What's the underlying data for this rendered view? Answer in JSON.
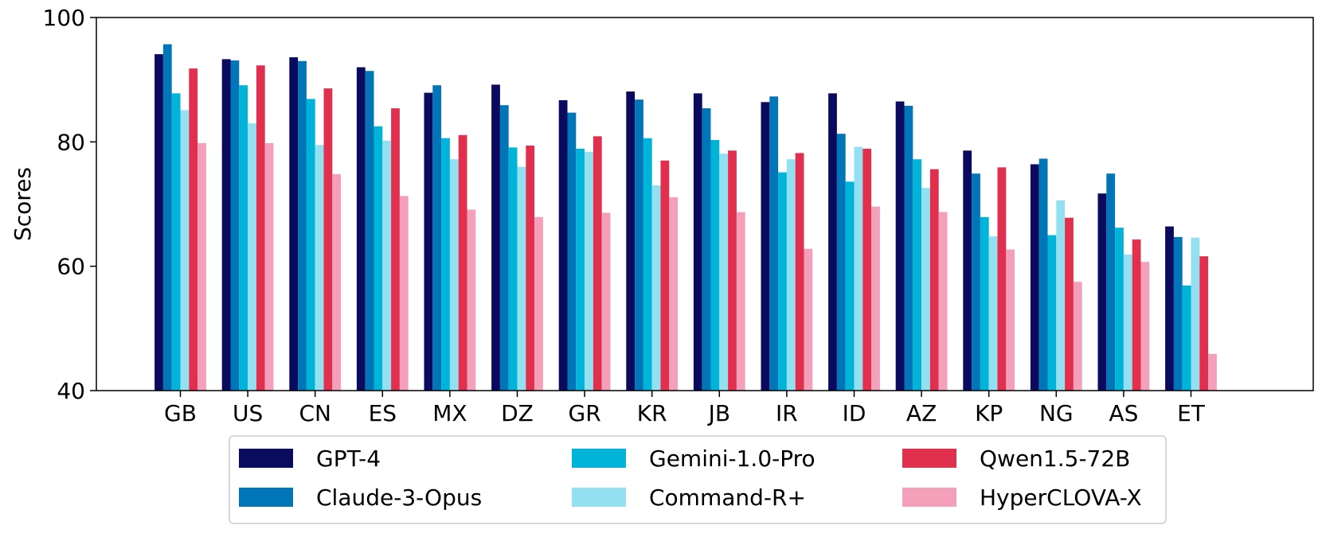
{
  "chart_data": {
    "type": "bar",
    "title": "",
    "xlabel": "",
    "ylabel": "Scores",
    "ylim": [
      40,
      100
    ],
    "yticks": [
      40,
      60,
      80,
      100
    ],
    "legend_position": "bottom",
    "categories": [
      "GB",
      "US",
      "CN",
      "ES",
      "MX",
      "DZ",
      "GR",
      "KR",
      "JB",
      "IR",
      "ID",
      "AZ",
      "KP",
      "NG",
      "AS",
      "ET"
    ],
    "series": [
      {
        "name": "GPT-4",
        "color": "#0a0a5e",
        "values": [
          94.1,
          93.3,
          93.6,
          92.0,
          87.9,
          89.2,
          86.7,
          88.1,
          87.8,
          86.4,
          87.8,
          86.5,
          78.6,
          76.4,
          71.7,
          66.4
        ]
      },
      {
        "name": "Claude-3-Opus",
        "color": "#0075b8",
        "values": [
          95.7,
          93.1,
          93.0,
          91.4,
          89.1,
          85.9,
          84.7,
          86.8,
          85.4,
          87.3,
          81.3,
          85.8,
          74.9,
          77.3,
          74.9,
          64.7
        ]
      },
      {
        "name": "Gemini-1.0-Pro",
        "color": "#00b3d9",
        "values": [
          87.8,
          89.1,
          86.9,
          82.5,
          80.6,
          79.1,
          78.9,
          80.6,
          80.3,
          75.1,
          73.6,
          77.2,
          67.9,
          65.0,
          66.2,
          56.9
        ]
      },
      {
        "name": "Command-R+",
        "color": "#93e0f0",
        "values": [
          85.1,
          83.0,
          79.5,
          80.2,
          77.2,
          76.0,
          78.4,
          73.0,
          78.1,
          77.2,
          79.2,
          72.6,
          64.8,
          70.6,
          61.9,
          64.6
        ]
      },
      {
        "name": "Qwen1.5-72B",
        "color": "#e0304e",
        "values": [
          91.8,
          92.3,
          88.6,
          85.4,
          81.1,
          79.4,
          80.9,
          77.0,
          78.6,
          78.2,
          78.9,
          75.6,
          75.9,
          67.8,
          64.3,
          61.6
        ]
      },
      {
        "name": "HyperCLOVA-X",
        "color": "#f4a0bb",
        "values": [
          79.8,
          79.8,
          74.8,
          71.3,
          69.1,
          67.9,
          68.6,
          71.1,
          68.7,
          62.8,
          69.6,
          68.7,
          62.7,
          57.5,
          60.7,
          45.9
        ]
      }
    ]
  }
}
